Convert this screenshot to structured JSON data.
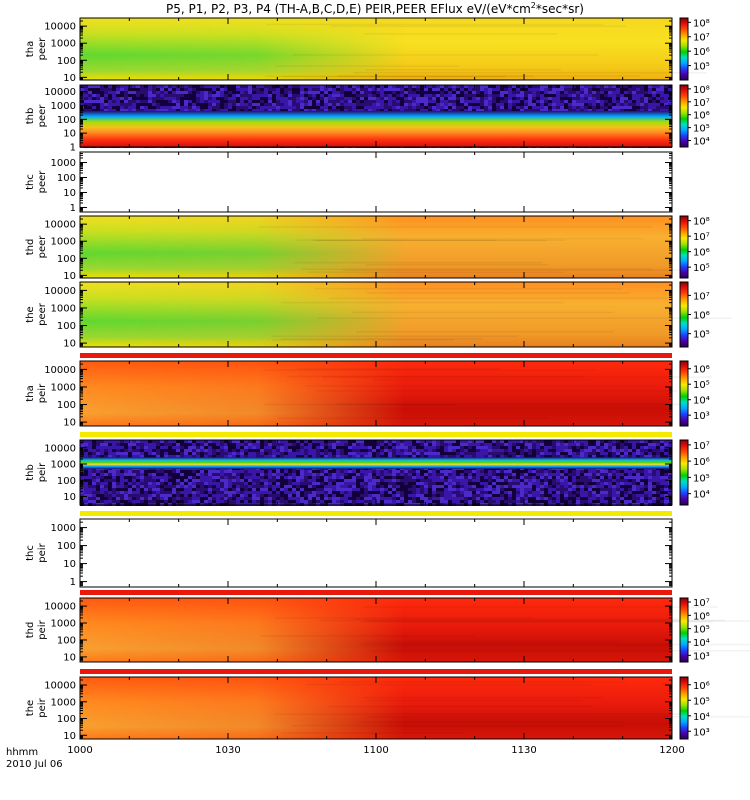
{
  "title": "P5, P1, P2, P3, P4 (TH-A,B,C,D,E) PEIR,PEER EFlux eV/(eV*cm",
  "title_sup": "2",
  "title_tail": "*sec*sr)",
  "colors": {
    "red": "#e8180c",
    "yellow": "#f4ea00",
    "frame": "#000000"
  },
  "chart_data": {
    "type": "heatmap",
    "x_label_left": "hhmm",
    "date_label": "2010 Jul 06",
    "x_ticks": [
      "1000",
      "1030",
      "1100",
      "1130",
      "1200"
    ],
    "xlim": [
      "10:00",
      "12:00"
    ],
    "panels": [
      {
        "probe": "tha",
        "species": "peer",
        "yticks": [
          "10000",
          "1000",
          "100",
          "10"
        ],
        "yrange": [
          7,
          30000
        ],
        "cticks": [
          "10⁸",
          "10⁷",
          "10⁶",
          "10⁵"
        ],
        "crange": [
          4,
          8.3
        ],
        "style": "smooth",
        "low_state": "green",
        "high_state": "yellow",
        "top_band": null
      },
      {
        "probe": "thb",
        "species": "peer",
        "yticks": [
          "10000",
          "1000",
          "100",
          "10",
          "1"
        ],
        "yrange": [
          1,
          30000
        ],
        "cticks": [
          "10⁸",
          "10⁷",
          "10⁶",
          "10⁵",
          "10⁴"
        ],
        "crange": [
          3.5,
          8.3
        ],
        "style": "noise_band",
        "top_band": null
      },
      {
        "probe": "thc",
        "species": "peer",
        "yticks": [
          "1000",
          "100",
          "10",
          "1"
        ],
        "yrange": [
          0.5,
          5000
        ],
        "cticks": [],
        "style": "empty",
        "top_band": null
      },
      {
        "probe": "thd",
        "species": "peer",
        "yticks": [
          "10000",
          "1000",
          "100",
          "10"
        ],
        "yrange": [
          7,
          30000
        ],
        "cticks": [
          "10⁸",
          "10⁷",
          "10⁶",
          "10⁵"
        ],
        "crange": [
          4.3,
          8.3
        ],
        "style": "smooth",
        "low_state": "green",
        "high_state": "orange",
        "top_band": null
      },
      {
        "probe": "the",
        "species": "peer",
        "yticks": [
          "10000",
          "1000",
          "100",
          "10"
        ],
        "yrange": [
          6,
          30000
        ],
        "cticks": [
          "10⁷",
          "10⁶",
          "10⁵"
        ],
        "crange": [
          4.3,
          7.7
        ],
        "style": "smooth",
        "low_state": "green",
        "high_state": "orange",
        "top_band": null
      },
      {
        "probe": "tha",
        "species": "peir",
        "yticks": [
          "10000",
          "1000",
          "100",
          "10"
        ],
        "yrange": [
          6,
          30000
        ],
        "cticks": [
          "10⁶",
          "10⁵",
          "10⁴",
          "10³"
        ],
        "crange": [
          2.3,
          6.5
        ],
        "style": "smooth",
        "low_state": "orange",
        "high_state": "red",
        "top_band": "red"
      },
      {
        "probe": "thb",
        "species": "peir",
        "yticks": [
          "10000",
          "1000",
          "100",
          "10"
        ],
        "yrange": [
          3,
          30000
        ],
        "cticks": [
          "10⁷",
          "10⁶",
          "10⁵",
          "10⁴"
        ],
        "crange": [
          3.3,
          7.3
        ],
        "style": "noise_band",
        "top_band": "yellow"
      },
      {
        "probe": "thc",
        "species": "peir",
        "yticks": [
          "1000",
          "100",
          "10",
          "1"
        ],
        "yrange": [
          0.5,
          3000
        ],
        "cticks": [],
        "style": "empty",
        "top_band": "yellow"
      },
      {
        "probe": "thd",
        "species": "peir",
        "yticks": [
          "10000",
          "1000",
          "100",
          "10"
        ],
        "yrange": [
          5,
          30000
        ],
        "cticks": [
          "10⁷",
          "10⁶",
          "10⁵",
          "10⁴",
          "10³"
        ],
        "crange": [
          2.5,
          7.3
        ],
        "style": "smooth",
        "low_state": "orange",
        "high_state": "red",
        "top_band": "red"
      },
      {
        "probe": "the",
        "species": "peir",
        "yticks": [
          "10000",
          "1000",
          "100",
          "10"
        ],
        "yrange": [
          6,
          30000
        ],
        "cticks": [
          "10⁶",
          "10⁵",
          "10⁴",
          "10³"
        ],
        "crange": [
          2.5,
          6.5
        ],
        "style": "smooth",
        "low_state": "orange",
        "high_state": "red",
        "top_band": "red"
      }
    ]
  }
}
